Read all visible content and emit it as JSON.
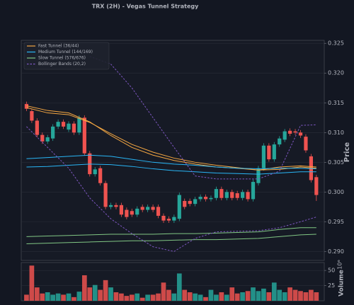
{
  "chart_data": {
    "type": "candlestick",
    "title": "TRX (2H) - Vegas Tunnel Strategy",
    "ylabel": "Price",
    "volume_label": "Volume",
    "volume_offset": "10⁶",
    "up_color": "#26a69a",
    "down_color": "#ef5350",
    "grid": true,
    "legend": "upper left",
    "open": [
      0.3148,
      0.3136,
      0.312,
      0.3096,
      0.3085,
      0.309,
      0.311,
      0.3118,
      0.3105,
      0.3115,
      0.31,
      0.3125,
      0.3065,
      0.303,
      0.304,
      0.3015,
      0.2975,
      0.2978,
      0.2978,
      0.297,
      0.2968,
      0.2962,
      0.2975,
      0.297,
      0.2975,
      0.2975,
      0.296,
      0.2955,
      0.2952,
      0.2955,
      0.2985,
      0.2985,
      0.298,
      0.2988,
      0.2992,
      0.2988,
      0.299,
      0.3005,
      0.299,
      0.3,
      0.2998,
      0.299,
      0.3,
      0.2988,
      0.3015,
      0.304,
      0.3078,
      0.3055,
      0.308,
      0.3088,
      0.3103,
      0.3102,
      0.31,
      0.3093,
      0.306,
      0.3025
    ],
    "high": [
      0.3152,
      0.314,
      0.3124,
      0.31,
      0.3096,
      0.3114,
      0.3122,
      0.3122,
      0.3119,
      0.3119,
      0.3129,
      0.3129,
      0.3069,
      0.3042,
      0.3044,
      0.3019,
      0.2982,
      0.2982,
      0.2982,
      0.2974,
      0.2972,
      0.2976,
      0.2979,
      0.2979,
      0.2979,
      0.2979,
      0.2964,
      0.2959,
      0.2962,
      0.2999,
      0.2989,
      0.2989,
      0.2992,
      0.2996,
      0.2996,
      0.2994,
      0.3009,
      0.3009,
      0.3004,
      0.3004,
      0.3002,
      0.3004,
      0.3004,
      0.3021,
      0.3044,
      0.3082,
      0.3082,
      0.3084,
      0.3094,
      0.3106,
      0.3107,
      0.3106,
      0.3104,
      0.3097,
      0.3064,
      0.3029
    ],
    "low": [
      0.3136,
      0.3116,
      0.3092,
      0.3081,
      0.3081,
      0.3086,
      0.3106,
      0.3106,
      0.3101,
      0.3096,
      0.3096,
      0.3061,
      0.3026,
      0.3026,
      0.3011,
      0.2971,
      0.2971,
      0.2971,
      0.2958,
      0.2954,
      0.2958,
      0.2958,
      0.2966,
      0.2966,
      0.2966,
      0.2956,
      0.2948,
      0.2948,
      0.2948,
      0.2951,
      0.2971,
      0.2976,
      0.2976,
      0.2984,
      0.2984,
      0.2984,
      0.2986,
      0.2986,
      0.2986,
      0.2986,
      0.2986,
      0.2986,
      0.2984,
      0.2984,
      0.3011,
      0.3036,
      0.3051,
      0.3051,
      0.3076,
      0.3084,
      0.3094,
      0.3096,
      0.3091,
      0.3066,
      0.3016,
      0.2985
    ],
    "close": [
      0.314,
      0.312,
      0.3096,
      0.3085,
      0.3092,
      0.311,
      0.3118,
      0.311,
      0.3115,
      0.31,
      0.3125,
      0.3065,
      0.303,
      0.3038,
      0.3015,
      0.2975,
      0.2978,
      0.2975,
      0.2962,
      0.2958,
      0.2962,
      0.2972,
      0.297,
      0.2975,
      0.297,
      0.296,
      0.2952,
      0.2952,
      0.2958,
      0.2995,
      0.2975,
      0.298,
      0.2988,
      0.2992,
      0.2988,
      0.299,
      0.3005,
      0.299,
      0.3,
      0.299,
      0.299,
      0.3,
      0.2988,
      0.3017,
      0.304,
      0.3078,
      0.3055,
      0.308,
      0.309,
      0.3102,
      0.3098,
      0.31,
      0.3095,
      0.307,
      0.302,
      0.2995
    ],
    "volume": [
      10,
      58,
      22,
      12,
      14,
      10,
      12,
      10,
      12,
      6,
      15,
      42,
      22,
      26,
      18,
      34,
      22,
      14,
      12,
      8,
      10,
      12,
      5,
      10,
      10,
      12,
      30,
      18,
      12,
      45,
      18,
      14,
      12,
      10,
      6,
      18,
      10,
      14,
      10,
      22,
      12,
      14,
      16,
      22,
      16,
      20,
      14,
      30,
      18,
      14,
      22,
      18,
      16,
      14,
      18,
      14
    ],
    "line_x": [
      0,
      4,
      8,
      12,
      16,
      20,
      24,
      28,
      32,
      36,
      40,
      44,
      48,
      52,
      55
    ],
    "overlays": [
      {
        "name": "Fast Tunnel (36/44)",
        "color": "#f5a742",
        "dashed": false,
        "lines": [
          [
            0.3145,
            0.3137,
            0.3133,
            0.3118,
            0.3095,
            0.3075,
            0.3062,
            0.3053,
            0.3047,
            0.3042,
            0.304,
            0.3037,
            0.3042,
            0.3044,
            0.3042
          ],
          [
            0.3142,
            0.3133,
            0.313,
            0.3117,
            0.3098,
            0.308,
            0.3067,
            0.3057,
            0.305,
            0.3045,
            0.3041,
            0.3037,
            0.3038,
            0.3042,
            0.304
          ]
        ]
      },
      {
        "name": "Medium Tunnel (144/169)",
        "color": "#29b6f6",
        "dashed": false,
        "lines": [
          [
            0.3056,
            0.3058,
            0.306,
            0.3062,
            0.306,
            0.3055,
            0.305,
            0.3047,
            0.3045,
            0.3042,
            0.304,
            0.3039,
            0.304,
            0.304,
            0.3039
          ],
          [
            0.3042,
            0.3043,
            0.3045,
            0.3047,
            0.3046,
            0.3043,
            0.3039,
            0.3036,
            0.3034,
            0.3032,
            0.3031,
            0.303,
            0.3032,
            0.3034,
            0.3034
          ]
        ]
      },
      {
        "name": "Slow Tunnel (576/676)",
        "color": "#81c784",
        "dashed": false,
        "lines": [
          [
            0.2925,
            0.2926,
            0.2927,
            0.2928,
            0.2929,
            0.2929,
            0.2929,
            0.293,
            0.293,
            0.2931,
            0.2932,
            0.2933,
            0.2937,
            0.294,
            0.294
          ],
          [
            0.2913,
            0.2914,
            0.2915,
            0.2916,
            0.2917,
            0.2918,
            0.2918,
            0.2919,
            0.292,
            0.292,
            0.2921,
            0.2922,
            0.2925,
            0.2928,
            0.2929
          ]
        ]
      },
      {
        "name": "Bollinger Bands (20,2)",
        "color": "#7e57c2",
        "dashed": true,
        "lines": [
          [
            null,
            null,
            null,
            0.3228,
            0.3215,
            0.3175,
            0.3125,
            0.3075,
            0.3027,
            0.3022,
            0.3022,
            0.3022,
            0.3035,
            0.3112,
            0.3113
          ],
          [
            0.311,
            0.3075,
            0.304,
            0.299,
            0.2955,
            0.293,
            0.2908,
            0.29,
            0.2922,
            0.2933,
            0.2934,
            0.2935,
            0.294,
            0.295,
            0.2958
          ]
        ]
      }
    ],
    "ylim": [
      0.2885,
      0.3255
    ],
    "yticks": [
      {
        "value": 0.29,
        "label": "0.290"
      },
      {
        "value": 0.295,
        "label": "0.295"
      },
      {
        "value": 0.3,
        "label": "0.300"
      },
      {
        "value": 0.305,
        "label": "0.305"
      },
      {
        "value": 0.31,
        "label": "0.310"
      },
      {
        "value": 0.315,
        "label": "0.315"
      },
      {
        "value": 0.32,
        "label": "0.320"
      },
      {
        "value": 0.325,
        "label": "0.325"
      }
    ],
    "vlim": [
      0,
      63
    ],
    "vticks": [
      25,
      50
    ]
  }
}
